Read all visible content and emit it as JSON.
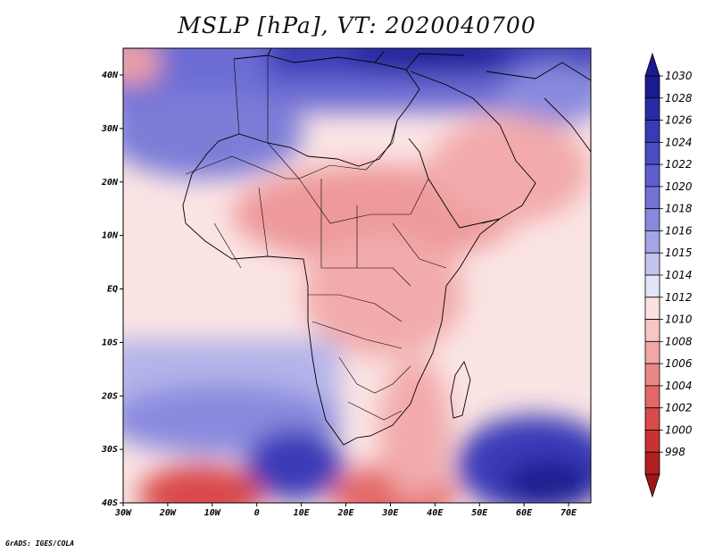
{
  "title": "MSLP [hPa], VT: 2020040700",
  "credit": "GrADS: IGES/COLA",
  "lon_ticks": [
    "30W",
    "20W",
    "10W",
    "0",
    "10E",
    "20E",
    "30E",
    "40E",
    "50E",
    "60E",
    "70E"
  ],
  "lat_ticks": [
    "40N",
    "30N",
    "20N",
    "10N",
    "EQ",
    "10S",
    "20S",
    "30S",
    "40S"
  ],
  "colorbar": {
    "labels": [
      "1030",
      "1028",
      "1026",
      "1024",
      "1022",
      "1020",
      "1018",
      "1016",
      "1015",
      "1014",
      "1012",
      "1010",
      "1008",
      "1006",
      "1004",
      "1002",
      "1000",
      "998"
    ],
    "colors": [
      "#1b1b8f",
      "#2a2aa6",
      "#3a3ab8",
      "#4b4bc4",
      "#5e5ece",
      "#7272d6",
      "#8989de",
      "#a4a4e6",
      "#c4c4f0",
      "#e4e4f8",
      "#fde0e0",
      "#f9c4c4",
      "#f2a6a6",
      "#eb8787",
      "#e46767",
      "#d94a4a",
      "#c93232",
      "#b01e1e"
    ],
    "top_arrow": "#1b1b8f",
    "bottom_arrow": "#a01616"
  }
}
